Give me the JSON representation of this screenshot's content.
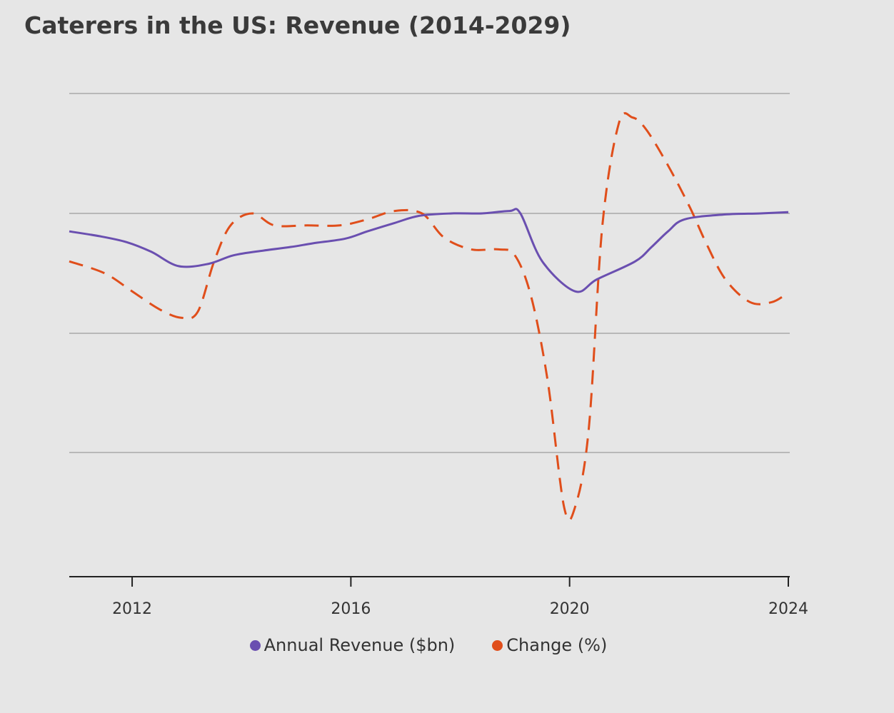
{
  "chart_data": {
    "type": "line",
    "title": "Caterers in the US: Revenue (2014-2029)",
    "xlabel": "",
    "ylabel": "",
    "x_ticks": [
      "2012",
      "2016",
      "2020",
      "2024"
    ],
    "xlim": [
      2010.85,
      2024
    ],
    "grid": true,
    "legend_position": "bottom",
    "series": [
      {
        "name": "Annual Revenue ($bn)",
        "color": "#6a4fb0",
        "line_style": "solid",
        "x": [
          2010.85,
          2011.4,
          2011.9,
          2012.35,
          2012.85,
          2013.4,
          2013.85,
          2014.4,
          2014.9,
          2015.3,
          2015.9,
          2016.3,
          2016.8,
          2017.25,
          2017.85,
          2018.4,
          2018.9,
          2019.1,
          2019.5,
          2020.1,
          2020.5,
          2021.2,
          2021.5,
          2021.8,
          2022.1,
          2022.8,
          2023.5,
          2024
        ],
        "values": [
          -0.85,
          -0.81,
          -0.76,
          -0.68,
          -0.56,
          -0.58,
          -0.65,
          -0.69,
          -0.72,
          -0.75,
          -0.79,
          -0.85,
          -0.92,
          -0.98,
          -1.0,
          -1.0,
          -1.02,
          -1.0,
          -0.6,
          -0.35,
          -0.45,
          -0.6,
          -0.72,
          -0.85,
          -0.95,
          -0.99,
          -1.0,
          -1.01
        ]
      },
      {
        "name": "Change (%)",
        "color": "#e04e1b",
        "line_style": "dashed",
        "x": [
          2010.85,
          2011.5,
          2012.0,
          2012.5,
          2012.9,
          2013.2,
          2013.5,
          2013.8,
          2014.2,
          2014.6,
          2015.2,
          2015.8,
          2016.3,
          2016.8,
          2017.3,
          2017.7,
          2018.2,
          2018.7,
          2019.0,
          2019.3,
          2019.6,
          2019.9,
          2020.1,
          2020.35,
          2020.6,
          2020.9,
          2021.15,
          2021.4,
          2021.8,
          2022.2,
          2022.5,
          2022.85,
          2023.3,
          2023.7,
          2024
        ],
        "values": [
          -0.6,
          -0.5,
          -0.35,
          -0.2,
          -0.13,
          -0.18,
          -0.6,
          -0.9,
          -1.0,
          -0.9,
          -0.9,
          -0.9,
          -0.95,
          -1.02,
          -1.0,
          -0.8,
          -0.7,
          -0.7,
          -0.65,
          -0.3,
          0.4,
          1.45,
          1.45,
          0.8,
          -0.9,
          -1.75,
          -1.8,
          -1.7,
          -1.4,
          -1.05,
          -0.75,
          -0.45,
          -0.26,
          -0.26,
          -0.34
        ]
      }
    ]
  }
}
